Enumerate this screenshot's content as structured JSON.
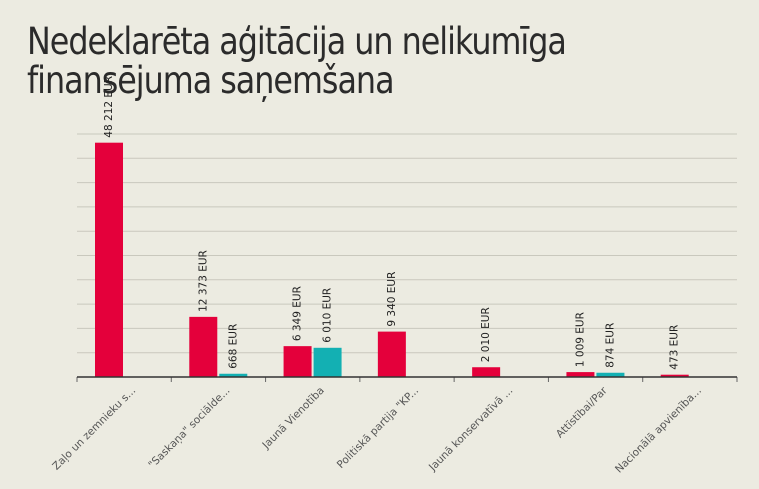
{
  "chart_data": {
    "type": "bar",
    "title": "Nedeklarēta aģitācija un nelikumīga finansējuma saņemšana",
    "xlabel": "",
    "ylabel": "",
    "ylim": [
      0,
      50000
    ],
    "grid": true,
    "categories": [
      "Zaļo un zemnieku s...",
      "\"Saskaņa\" sociālde...",
      "Jaunā Vienotība",
      "Politiskā partija \"KP...",
      "Jaunā konservatīvā ...",
      "Attīstībai/Par",
      "Nacionālā apvienība..."
    ],
    "series": [
      {
        "color": "#e4003b",
        "values": [
          48212,
          12373,
          6349,
          9340,
          2010,
          1009,
          473
        ],
        "labels": [
          "48 212 EUR",
          "12 373 EUR",
          "6 349 EUR",
          "9 340 EUR",
          "2 010 EUR",
          "1 009 EUR",
          "473 EUR"
        ]
      },
      {
        "color": "#13b0b3",
        "values": [
          null,
          668,
          6010,
          null,
          null,
          874,
          null
        ],
        "labels": [
          null,
          "668 EUR",
          "6 010 EUR",
          null,
          null,
          "874 EUR",
          null
        ]
      }
    ]
  }
}
